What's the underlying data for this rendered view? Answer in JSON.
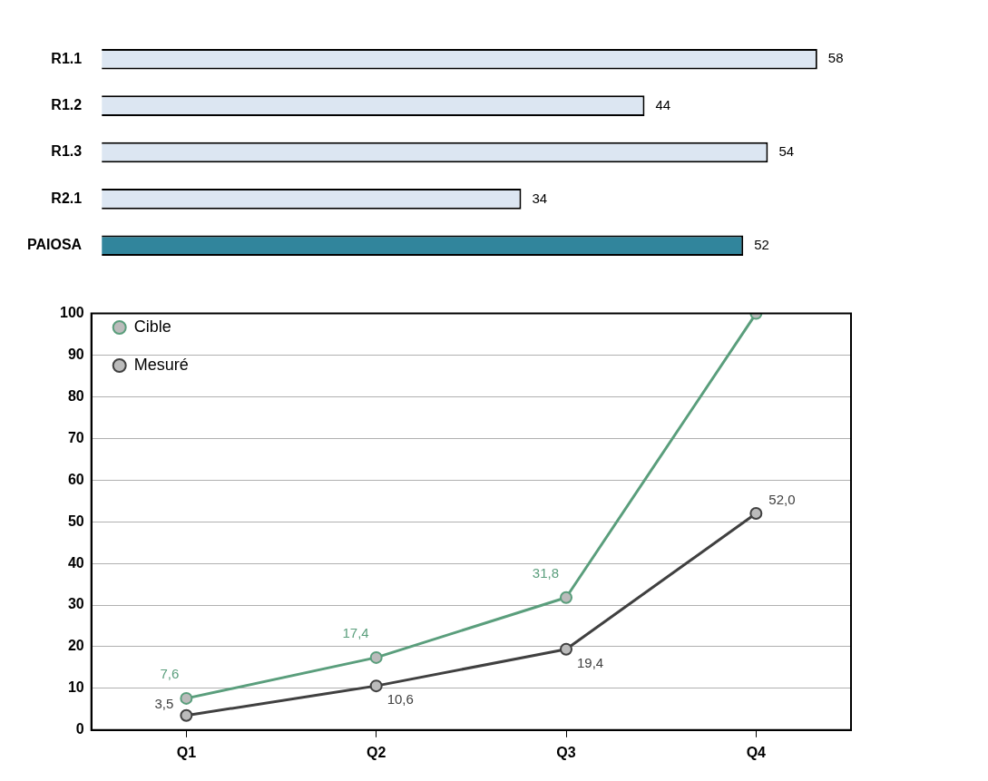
{
  "chart_data": [
    {
      "type": "bar",
      "orientation": "horizontal",
      "categories": [
        "R1.1",
        "R1.2",
        "R1.3",
        "R2.1",
        "PAIOSA"
      ],
      "values": [
        58,
        44,
        54,
        34,
        52
      ],
      "colors": [
        "#dce6f2",
        "#dce6f2",
        "#dce6f2",
        "#dce6f2",
        "#31859c"
      ],
      "data_labels": true,
      "grid": false,
      "legend": false
    },
    {
      "type": "line",
      "categories": [
        "Q1",
        "Q2",
        "Q3",
        "Q4"
      ],
      "ylim": [
        0,
        100
      ],
      "yticks": [
        0,
        10,
        20,
        30,
        40,
        50,
        60,
        70,
        80,
        90,
        100
      ],
      "grid": "y",
      "legend": "top left",
      "marker": "circle",
      "series": [
        {
          "name": "Cible",
          "color": "#5a9e7c",
          "values": [
            7.6,
            17.4,
            31.8,
            100
          ],
          "value_labels": [
            "7,6",
            "17,4",
            "31,8",
            null
          ]
        },
        {
          "name": "Mesuré",
          "color": "#404040",
          "values": [
            3.5,
            10.6,
            19.4,
            52.0
          ],
          "value_labels": [
            "3,5",
            "10,6",
            "19,4",
            "52,0"
          ]
        }
      ]
    }
  ]
}
